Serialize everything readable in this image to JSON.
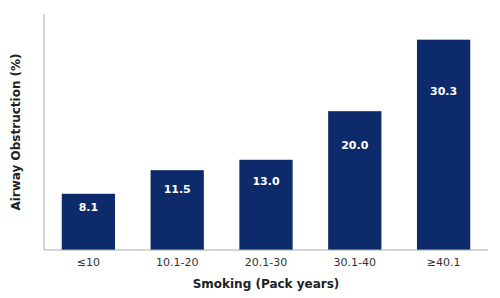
{
  "chart_data": {
    "type": "bar",
    "categories": [
      "≤10",
      "10.1-20",
      "20.1-30",
      "30.1-40",
      "≥40.1"
    ],
    "values": [
      8.1,
      11.5,
      13.0,
      20.0,
      30.3
    ],
    "value_labels": [
      "8.1",
      "11.5",
      "13.0",
      "20.0",
      "30.3"
    ],
    "data_labels": true,
    "color": "#0d2b6b",
    "xlabel": "Smoking (Pack years)",
    "ylabel": "Airway Obstruction (%)",
    "ylim": [
      0,
      34
    ],
    "yticks": [],
    "tick_labels": "x",
    "grid": false
  }
}
